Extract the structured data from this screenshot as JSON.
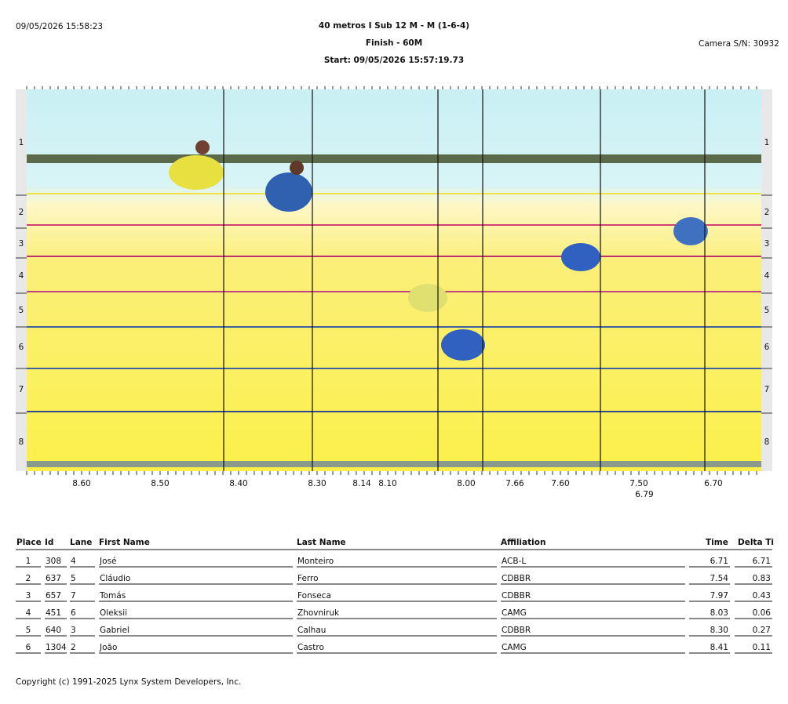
{
  "header": {
    "timestamp": "09/05/2026 15:58:23",
    "event": "40 metros I Sub 12 M - M (1-6-4)",
    "finish": "Finish - 60M",
    "start": "Start: 09/05/2026 15:57:19.73",
    "camera": "Camera S/N: 30932"
  },
  "photo": {
    "lanes": [
      "1",
      "2",
      "3",
      "4",
      "5",
      "6",
      "7",
      "8"
    ],
    "time_labels": [
      "8.60",
      "8.50",
      "8.40",
      "8.30",
      "8.14",
      "8.10",
      "8.00",
      "7.66",
      "7.60",
      "7.50",
      "6.79",
      "6.70"
    ]
  },
  "table": {
    "columns": [
      "Place",
      "Id",
      "Lane",
      "First Name",
      "Last Name",
      "Affiliation",
      "Time",
      "Delta Ti"
    ],
    "rows": [
      [
        "1",
        "308",
        "4",
        "José",
        "Monteiro",
        "ACB-L",
        "6.71",
        "6.71"
      ],
      [
        "2",
        "637",
        "5",
        "Cláudio",
        "Ferro",
        "CDBBR",
        "7.54",
        "0.83"
      ],
      [
        "3",
        "657",
        "7",
        "Tomás",
        "Fonseca",
        "CDBBR",
        "7.97",
        "0.43"
      ],
      [
        "4",
        "451",
        "6",
        "Oleksii",
        "Zhovniruk",
        "CAMG",
        "8.03",
        "0.06"
      ],
      [
        "5",
        "640",
        "3",
        "Gabriel",
        "Calhau",
        "CDBBR",
        "8.30",
        "0.27"
      ],
      [
        "6",
        "1304",
        "2",
        "João",
        "Castro",
        "CAMG",
        "8.41",
        "0.11"
      ]
    ]
  },
  "footer": {
    "copyright": "Copyright (c) 1991-2025 Lynx System Developers, Inc."
  }
}
